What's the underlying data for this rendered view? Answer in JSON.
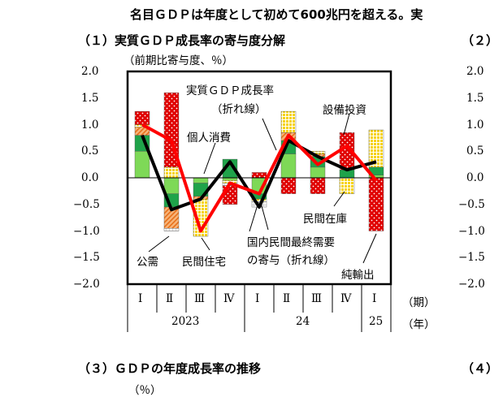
{
  "top_text": "名目ＧＤＰは年度として初めて600兆円を超える。実",
  "panel1": {
    "title": "（１）実質ＧＤＰ成長率の寄与度分解",
    "unit": "（前期比寄与度、％）"
  },
  "panel2": {
    "title": "（２）"
  },
  "panel3": {
    "title": "（３）ＧＤＰの年度成長率の推移",
    "unit": "（％）"
  },
  "panel4": {
    "title": "（４）"
  },
  "y_ticks": [
    "2.0",
    "1.5",
    "1.0",
    "0.5",
    "0.0",
    "−0.5",
    "−1.0",
    "−1.5",
    "−2.0"
  ],
  "annotations": {
    "gdp_line": "実質ＧＤＰ成長率",
    "gdp_line_sub": "（折れ線）",
    "consumption": "個人消費",
    "capex": "設備投資",
    "inventory": "民間在庫",
    "domestic": "国内民間最終需要",
    "domestic_sub": "の寄与（折れ線）",
    "public": "公需",
    "housing": "民間住宅",
    "net_exports": "純輸出"
  },
  "x_axis": {
    "quarters": [
      "Ⅰ",
      "Ⅱ",
      "Ⅲ",
      "Ⅳ",
      "Ⅰ",
      "Ⅱ",
      "Ⅲ",
      "Ⅳ",
      "Ⅰ"
    ],
    "years": [
      "2023",
      "24",
      "25"
    ],
    "period_label": "（期）",
    "year_label": "（年）"
  },
  "chart_data": {
    "type": "bar",
    "stacked": true,
    "categories": [
      "2023 Ⅰ",
      "2023 Ⅱ",
      "2023 Ⅲ",
      "2023 Ⅳ",
      "2024 Ⅰ",
      "2024 Ⅱ",
      "2024 Ⅲ",
      "2024 Ⅳ",
      "2025 Ⅰ"
    ],
    "ylim": [
      -2.0,
      2.0
    ],
    "series": [
      {
        "name": "個人消費",
        "style": "solid-lightgreen",
        "values": [
          0.5,
          -0.3,
          -0.1,
          -0.05,
          -0.3,
          0.45,
          0.2,
          0.0,
          0.05
        ]
      },
      {
        "name": "設備投資",
        "style": "solid-green",
        "values": [
          0.3,
          -0.25,
          -0.25,
          0.35,
          -0.1,
          0.25,
          0.2,
          0.15,
          0.15
        ]
      },
      {
        "name": "民間住宅",
        "style": "hatched-orange",
        "values": [
          0.15,
          -0.4,
          -0.05,
          0.0,
          0.0,
          0.15,
          0.05,
          0.0,
          0.0
        ]
      },
      {
        "name": "民間在庫",
        "style": "dotted-yellow",
        "values": [
          0.05,
          0.2,
          -0.7,
          -0.05,
          -0.05,
          0.4,
          0.05,
          -0.3,
          0.7
        ]
      },
      {
        "name": "公需",
        "style": "grid-white",
        "values": [
          0.0,
          -0.05,
          0.0,
          -0.05,
          -0.1,
          0.0,
          0.0,
          0.0,
          0.0
        ]
      },
      {
        "name": "純輸出",
        "style": "dotted-red",
        "values": [
          0.25,
          1.4,
          0.0,
          -0.35,
          0.1,
          -0.3,
          -0.3,
          0.7,
          -1.0
        ]
      }
    ],
    "lines": [
      {
        "name": "実質ＧＤＰ成長率",
        "color": "#000000",
        "values": [
          0.8,
          -0.6,
          -0.4,
          0.3,
          -0.55,
          0.7,
          0.4,
          0.15,
          0.3
        ]
      },
      {
        "name": "国内民間最終需要の寄与",
        "color": "#ff0000",
        "values": [
          1.0,
          0.7,
          -1.0,
          -0.1,
          -0.3,
          0.8,
          0.25,
          0.6,
          -0.05
        ]
      }
    ],
    "grid": false
  }
}
